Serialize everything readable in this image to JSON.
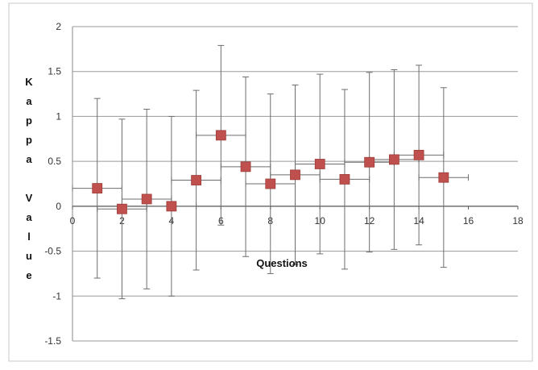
{
  "chart_data": {
    "type": "scatter",
    "title": "",
    "xlabel": "Questions",
    "ylabel": "Kappa Value",
    "xlim": [
      0,
      18
    ],
    "ylim": [
      -1.5,
      2
    ],
    "x_ticks": [
      0,
      2,
      4,
      6,
      8,
      10,
      12,
      14,
      16,
      18
    ],
    "y_ticks": [
      2,
      1.5,
      1,
      0.5,
      0,
      -0.5,
      -1,
      -1.5
    ],
    "grid": "horizontal",
    "legend": "none",
    "marker_color": "#c0504d",
    "series": [
      {
        "points": [
          {
            "x": 1,
            "y": 0.2,
            "y_err": 1.0,
            "x_err": 1
          },
          {
            "x": 2,
            "y": -0.03,
            "y_err": 1.0,
            "x_err": 1
          },
          {
            "x": 3,
            "y": 0.08,
            "y_err": 1.0,
            "x_err": 1
          },
          {
            "x": 4,
            "y": 0.0,
            "y_err": 1.0,
            "x_err": 1
          },
          {
            "x": 5,
            "y": 0.29,
            "y_err": 1.0,
            "x_err": 1
          },
          {
            "x": 6,
            "y": 0.79,
            "y_err": 1.0,
            "x_err": 1
          },
          {
            "x": 7,
            "y": 0.44,
            "y_err": 1.0,
            "x_err": 1
          },
          {
            "x": 8,
            "y": 0.25,
            "y_err": 1.0,
            "x_err": 1
          },
          {
            "x": 9,
            "y": 0.35,
            "y_err": 1.0,
            "x_err": 1
          },
          {
            "x": 10,
            "y": 0.47,
            "y_err": 1.0,
            "x_err": 1
          },
          {
            "x": 11,
            "y": 0.3,
            "y_err": 1.0,
            "x_err": 1
          },
          {
            "x": 12,
            "y": 0.49,
            "y_err": 1.0,
            "x_err": 1
          },
          {
            "x": 13,
            "y": 0.52,
            "y_err": 1.0,
            "x_err": 1
          },
          {
            "x": 14,
            "y": 0.57,
            "y_err": 1.0,
            "x_err": 1
          },
          {
            "x": 15,
            "y": 0.32,
            "y_err": 1.0,
            "x_err": 1
          }
        ]
      }
    ]
  }
}
